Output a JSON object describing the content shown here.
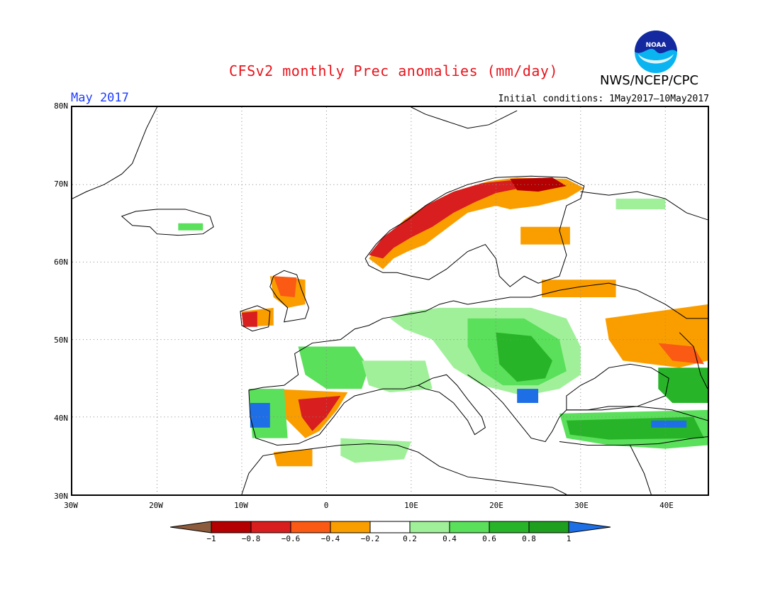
{
  "title": "CFSv2 monthly Prec anomalies (mm/day)",
  "organization": "NWS/NCEP/CPC",
  "logo_text": "NOAA",
  "month": "May 2017",
  "initial_conditions": "Initial conditions: 1May2017—10May2017",
  "map": {
    "lon_range": [
      -30,
      45
    ],
    "lat_range": [
      30,
      80
    ],
    "gridlines": "dotted",
    "lat_labels": [
      "80N",
      "70N",
      "60N",
      "50N",
      "40N",
      "30N"
    ],
    "lon_labels": [
      "30W",
      "20W",
      "10W",
      "0",
      "10E",
      "20E",
      "30E",
      "40E"
    ]
  },
  "colorbar": {
    "labels": [
      "−1",
      "−0.8",
      "−0.6",
      "−0.4",
      "−0.2",
      "0.2",
      "0.4",
      "0.6",
      "0.8",
      "1"
    ],
    "colors": {
      "below_min": "#8c5a3c",
      "neg_0_8_to_1": "#b40000",
      "neg_0_6_to_0_8": "#d81e1e",
      "neg_0_4_to_0_6": "#fa5a14",
      "neg_0_2_to_0_4": "#fa9e00",
      "neutral": "#ffffff",
      "pos_0_2_to_0_4": "#a0f09a",
      "pos_0_4_to_0_6": "#5ae05a",
      "pos_0_6_to_0_8": "#28b428",
      "pos_0_8_to_1": "#1ea01e",
      "above_max": "#1e6ee6"
    }
  }
}
